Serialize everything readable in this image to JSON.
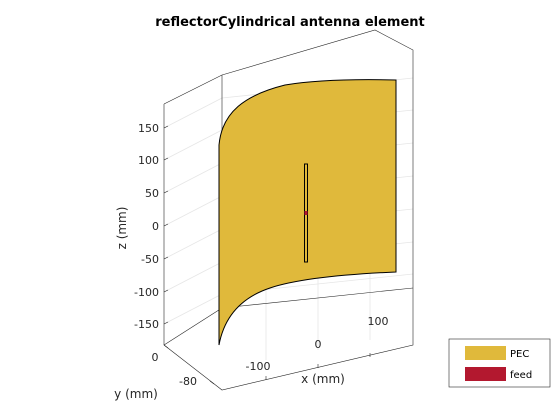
{
  "figure": {
    "title": "reflectorCylindrical antenna element"
  },
  "axes": {
    "zlabel": "z (mm)",
    "xlabel": "x (mm)",
    "ylabel": "y (mm)",
    "z_ticks": [
      "150",
      "100",
      "50",
      "0",
      "-50",
      "-100",
      "-150"
    ],
    "x_ticks": [
      "-100",
      "0",
      "100"
    ],
    "y_ticks": [
      "0",
      "-80"
    ]
  },
  "legend": {
    "items": [
      {
        "label": "PEC",
        "color": "#e0b93b"
      },
      {
        "label": "feed",
        "color": "#b3182f"
      }
    ]
  },
  "colors": {
    "reflector": "#e0b93b",
    "dipole": "#e0b93b",
    "feed": "#b3182f",
    "grid": "#ebebeb",
    "axis": "#262626"
  }
}
